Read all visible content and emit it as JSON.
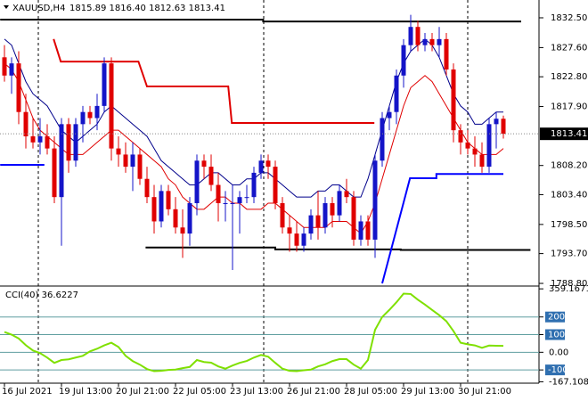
{
  "chart_data": [
    {
      "type": "candlestick",
      "title": "XAUUSD,H4",
      "quote": "1815.89 1816.40 1812.63 1813.41",
      "bull_color": "#1414c8",
      "bear_color": "#e00000",
      "open": [
        1826,
        1823,
        1825,
        1817,
        1813,
        1812,
        1813,
        1811,
        1803,
        1815,
        1809,
        1815,
        1817,
        1816,
        1818,
        1825,
        1811,
        1810,
        1808,
        1810,
        1806,
        1803,
        1799,
        1804,
        1801,
        1798,
        1797,
        1802,
        1809,
        1808,
        1805,
        1802,
        1802,
        1802,
        1803,
        1803,
        1807,
        1809,
        1808,
        1802,
        1798,
        1797,
        1795,
        1797,
        1800,
        1798,
        1802,
        1800,
        1804,
        1803,
        1796,
        1799,
        1796,
        1809,
        1816,
        1817,
        1823,
        1828,
        1831,
        1828,
        1829,
        1828,
        1829,
        1824,
        1814,
        1812,
        1811,
        1810,
        1808,
        1815,
        1815.89
      ],
      "high": [
        1828,
        1826,
        1827,
        1820,
        1816,
        1816,
        1815,
        1813,
        1816,
        1816,
        1816,
        1818,
        1818,
        1820,
        1826,
        1826,
        1813,
        1812,
        1812,
        1811,
        1808,
        1805,
        1805,
        1805,
        1803,
        1801,
        1803,
        1810,
        1810,
        1810,
        1807,
        1804,
        1805,
        1804,
        1805,
        1808,
        1810,
        1810,
        1809,
        1803,
        1800,
        1799,
        1798,
        1801,
        1804,
        1803,
        1803,
        1805,
        1806,
        1804,
        1800,
        1800,
        1810,
        1817,
        1818,
        1824,
        1829,
        1833,
        1832,
        1830,
        1830,
        1831,
        1830,
        1825,
        1815,
        1814,
        1813,
        1812,
        1816,
        1817,
        1816.4
      ],
      "low": [
        1822,
        1820,
        1815,
        1811,
        1811,
        1810,
        1810,
        1802,
        1795,
        1807,
        1808,
        1812,
        1815,
        1814,
        1817,
        1809,
        1808,
        1807,
        1804,
        1805,
        1802,
        1797,
        1798,
        1800,
        1797,
        1793,
        1795,
        1800,
        1806,
        1804,
        1799,
        1799,
        1791,
        1797,
        1802,
        1802,
        1806,
        1806,
        1801,
        1797,
        1794,
        1794,
        1794,
        1796,
        1796,
        1797,
        1798,
        1799,
        1802,
        1795,
        1795,
        1795,
        1793,
        1808,
        1814,
        1815,
        1821,
        1827,
        1827,
        1827,
        1827,
        1826,
        1823,
        1812,
        1810,
        1810,
        1808,
        1807,
        1807,
        1811,
        1812.63
      ],
      "close": [
        1823,
        1825,
        1817,
        1813,
        1812,
        1813,
        1811,
        1803,
        1815,
        1809,
        1815,
        1817,
        1816,
        1818,
        1825,
        1811,
        1810,
        1808,
        1810,
        1806,
        1803,
        1799,
        1804,
        1801,
        1798,
        1797,
        1802,
        1809,
        1808,
        1805,
        1802,
        1802,
        1802,
        1803,
        1803,
        1807,
        1809,
        1808,
        1802,
        1798,
        1797,
        1795,
        1797,
        1800,
        1798,
        1802,
        1800,
        1804,
        1803,
        1796,
        1799,
        1796,
        1809,
        1816,
        1817,
        1823,
        1828,
        1831,
        1828,
        1829,
        1828,
        1829,
        1824,
        1814,
        1812,
        1811,
        1810,
        1808,
        1815,
        1815.89,
        1813.41
      ],
      "lines": [
        {
          "color": "#00008b",
          "values": [
            1829,
            1828,
            1825,
            1822,
            1820,
            1819,
            1818,
            1816,
            1814,
            1813,
            1812,
            1813,
            1814,
            1815,
            1817,
            1818,
            1817,
            1816,
            1815,
            1814,
            1813,
            1811,
            1809,
            1808,
            1807,
            1806,
            1805,
            1805,
            1806,
            1807,
            1807,
            1806,
            1805,
            1805,
            1806,
            1806,
            1807,
            1807,
            1806,
            1805,
            1804,
            1803,
            1803,
            1803,
            1804,
            1804,
            1805,
            1805,
            1804,
            1803,
            1803,
            1806,
            1810,
            1814,
            1818,
            1822,
            1825,
            1827,
            1828,
            1829,
            1828,
            1826,
            1823,
            1820,
            1818,
            1817,
            1815,
            1815,
            1816,
            1817,
            1817
          ]
        },
        {
          "color": "#e00000",
          "values": [
            1825,
            1824,
            1822,
            1819,
            1816,
            1814,
            1813,
            1812,
            1811,
            1810,
            1810,
            1810,
            1811,
            1812,
            1813,
            1814,
            1814,
            1813,
            1812,
            1811,
            1810,
            1809,
            1808,
            1806,
            1805,
            1803,
            1802,
            1801,
            1801,
            1802,
            1803,
            1803,
            1802,
            1802,
            1801,
            1801,
            1801,
            1802,
            1802,
            1801,
            1800,
            1799,
            1798,
            1798,
            1798,
            1798,
            1799,
            1799,
            1799,
            1798,
            1797,
            1799,
            1802,
            1806,
            1810,
            1814,
            1818,
            1821,
            1822,
            1823,
            1822,
            1820,
            1818,
            1816,
            1814,
            1812,
            1811,
            1810,
            1810,
            1810,
            1811
          ]
        }
      ],
      "levels": [
        {
          "color": "#e00000",
          "points": [
            [
              6.9,
              1829
            ],
            [
              7.9,
              1825.3
            ],
            [
              18.8,
              1825.3
            ],
            [
              20,
              1821.2
            ],
            [
              31.4,
              1821.2
            ],
            [
              31.9,
              1815.2
            ],
            [
              51.9,
              1815.2
            ]
          ]
        },
        {
          "color": "#000000",
          "points": [
            [
              -0.6,
              1832.2
            ],
            [
              36.3,
              1832.2
            ],
            [
              36.3,
              1831.9
            ],
            [
              72.5,
              1831.9
            ]
          ]
        },
        {
          "color": "#000000",
          "points": [
            [
              19.8,
              1794.7
            ],
            [
              38,
              1794.7
            ],
            [
              38,
              1794.4
            ],
            [
              55.6,
              1794.4
            ],
            [
              55.6,
              1794.3
            ],
            [
              73.8,
              1794.3
            ]
          ]
        },
        {
          "color": "#0000ff",
          "points": [
            [
              -0.6,
              1808.3
            ],
            [
              5.6,
              1808.3
            ]
          ]
        },
        {
          "color": "#0000ff",
          "points": [
            [
              53,
              1788.8
            ],
            [
              56.9,
              1806.1
            ],
            [
              60.6,
              1806.1
            ],
            [
              60.6,
              1806.8
            ],
            [
              70,
              1806.8
            ]
          ]
        }
      ],
      "ylim": [
        1788.51,
        1835.43
      ],
      "yticks": [
        {
          "value": 1832.5,
          "label": "1832.50"
        },
        {
          "value": 1827.6,
          "label": "1827.60"
        },
        {
          "value": 1822.8,
          "label": "1822.80"
        },
        {
          "value": 1817.9,
          "label": "1817.90"
        },
        {
          "value": 1808.2,
          "label": "1808.20"
        },
        {
          "value": 1803.4,
          "label": "1803.40"
        },
        {
          "value": 1798.5,
          "label": "1798.50"
        },
        {
          "value": 1793.7,
          "label": "1793.70"
        },
        {
          "value": 1788.8,
          "label": "1788.80"
        }
      ],
      "current_price": {
        "value": 1813.41,
        "label": "1813.41"
      },
      "xticks": [
        {
          "value": 0,
          "label": "16 Jul 2021"
        },
        {
          "value": 8,
          "label": "19 Jul 13:00"
        },
        {
          "value": 16,
          "label": "20 Jul 21:00"
        },
        {
          "value": 24,
          "label": "22 Jul 05:00"
        },
        {
          "value": 32,
          "label": "23 Jul 13:00"
        },
        {
          "value": 40,
          "label": "26 Jul 21:00"
        },
        {
          "value": 48,
          "label": "28 Jul 05:00"
        },
        {
          "value": 56,
          "label": "29 Jul 13:00"
        },
        {
          "value": 64,
          "label": "30 Jul 21:00"
        }
      ]
    },
    {
      "type": "line",
      "title": "CCI(40) 36.6227",
      "color": "#7fe000",
      "values": [
        115,
        100,
        78,
        40,
        10,
        -5,
        -30,
        -60,
        -44,
        -40,
        -30,
        -20,
        5,
        20,
        39,
        54,
        30,
        -20,
        -50,
        -70,
        -95,
        -107,
        -105,
        -100,
        -98,
        -90,
        -83,
        -44,
        -55,
        -59,
        -80,
        -93,
        -75,
        -60,
        -49,
        -30,
        -15,
        -25,
        -60,
        -93,
        -105,
        -107,
        -102,
        -98,
        -80,
        -68,
        -50,
        -39,
        -39,
        -70,
        -93,
        -44,
        127,
        200,
        240,
        283,
        332,
        330,
        298,
        270,
        240,
        210,
        176,
        120,
        54,
        45,
        39,
        25,
        38,
        37,
        36.6227
      ],
      "ylim": [
        -175,
        370
      ],
      "yticks": [
        359.1671,
        200,
        100,
        {
          "value": 0,
          "label": "0.00"
        },
        -100,
        -167.1087
      ]
    }
  ]
}
